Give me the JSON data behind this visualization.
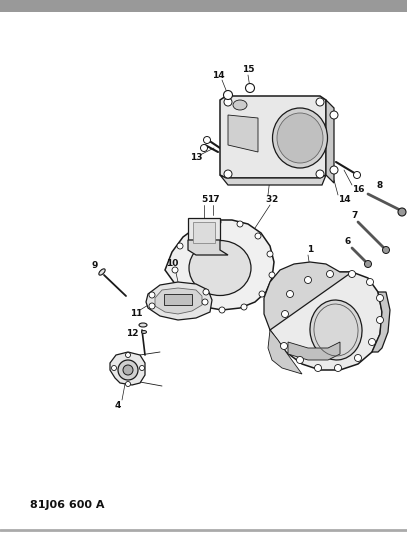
{
  "title": "81J06 600 A",
  "background_color": "#ffffff",
  "text_color": "#000000",
  "fig_width": 4.07,
  "fig_height": 5.33,
  "dpi": 100,
  "line_color": "#1a1a1a",
  "label_color": "#111111"
}
